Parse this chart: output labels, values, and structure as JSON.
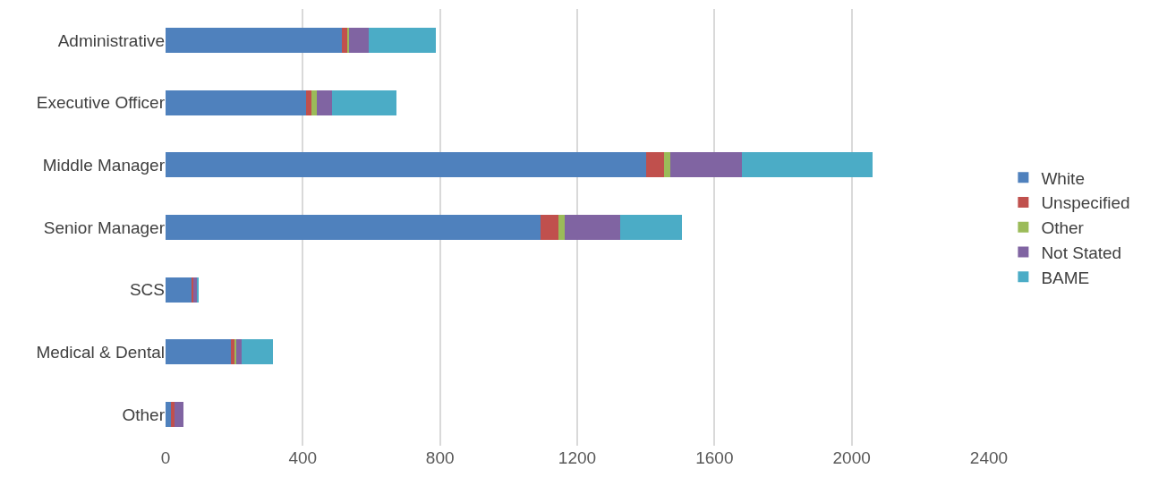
{
  "chart_data": {
    "type": "bar",
    "orientation": "horizontal",
    "stacked": true,
    "categories": [
      "Administrative",
      "Executive Officer",
      "Middle Manager",
      "Senior Manager",
      "SCS",
      "Medical & Dental",
      "Other"
    ],
    "series": [
      {
        "name": "White",
        "color": "#4f81bd",
        "values": [
          514,
          410,
          1402,
          1094,
          77,
          190,
          15
        ]
      },
      {
        "name": "Unspecified",
        "color": "#c0504d",
        "values": [
          16,
          16,
          50,
          52,
          4,
          10,
          10
        ]
      },
      {
        "name": "Other",
        "color": "#9bbb59",
        "values": [
          6,
          14,
          18,
          18,
          0,
          6,
          0
        ]
      },
      {
        "name": "Not Stated",
        "color": "#8064a2",
        "values": [
          56,
          44,
          210,
          161,
          11,
          15,
          27
        ]
      },
      {
        "name": "BAME",
        "color": "#4bacc6",
        "values": [
          195,
          189,
          380,
          181,
          4,
          92,
          0
        ]
      }
    ],
    "xlim": [
      0,
      2400
    ],
    "xticks": [
      0,
      400,
      800,
      1200,
      1600,
      2000,
      2400
    ],
    "grid": "x",
    "legend": "right"
  }
}
